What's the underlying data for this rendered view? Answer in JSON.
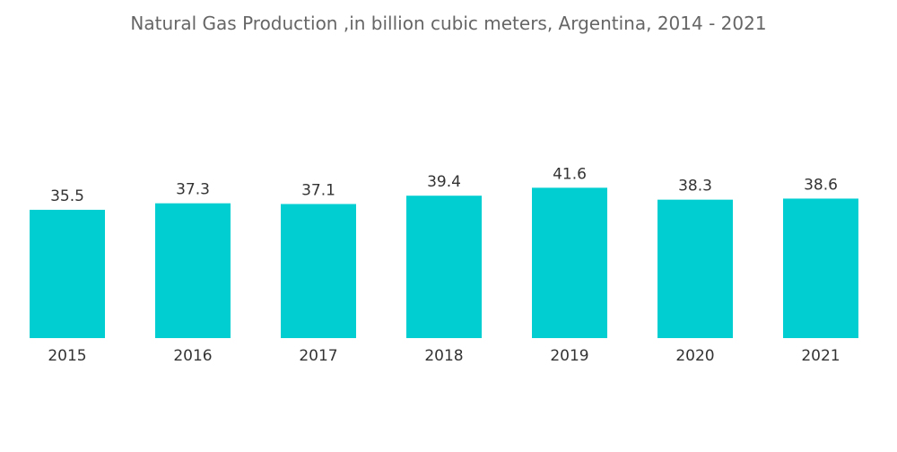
{
  "chart_data": {
    "type": "bar",
    "title": "Natural Gas Production ,in billion cubic meters, Argentina, 2014 - 2021",
    "categories": [
      "2015",
      "2016",
      "2017",
      "2018",
      "2019",
      "2020",
      "2021"
    ],
    "values": [
      35.5,
      37.3,
      37.1,
      39.4,
      41.6,
      38.3,
      38.6
    ],
    "value_labels": [
      "35.5",
      "37.3",
      "37.1",
      "39.4",
      "41.6",
      "38.3",
      "38.6"
    ],
    "xlabel": "",
    "ylabel": "",
    "ylim": [
      0,
      42
    ],
    "grid": false,
    "legend": "none",
    "bar_color": "#00CED1",
    "text_color": "#333333",
    "title_color": "#666666"
  }
}
